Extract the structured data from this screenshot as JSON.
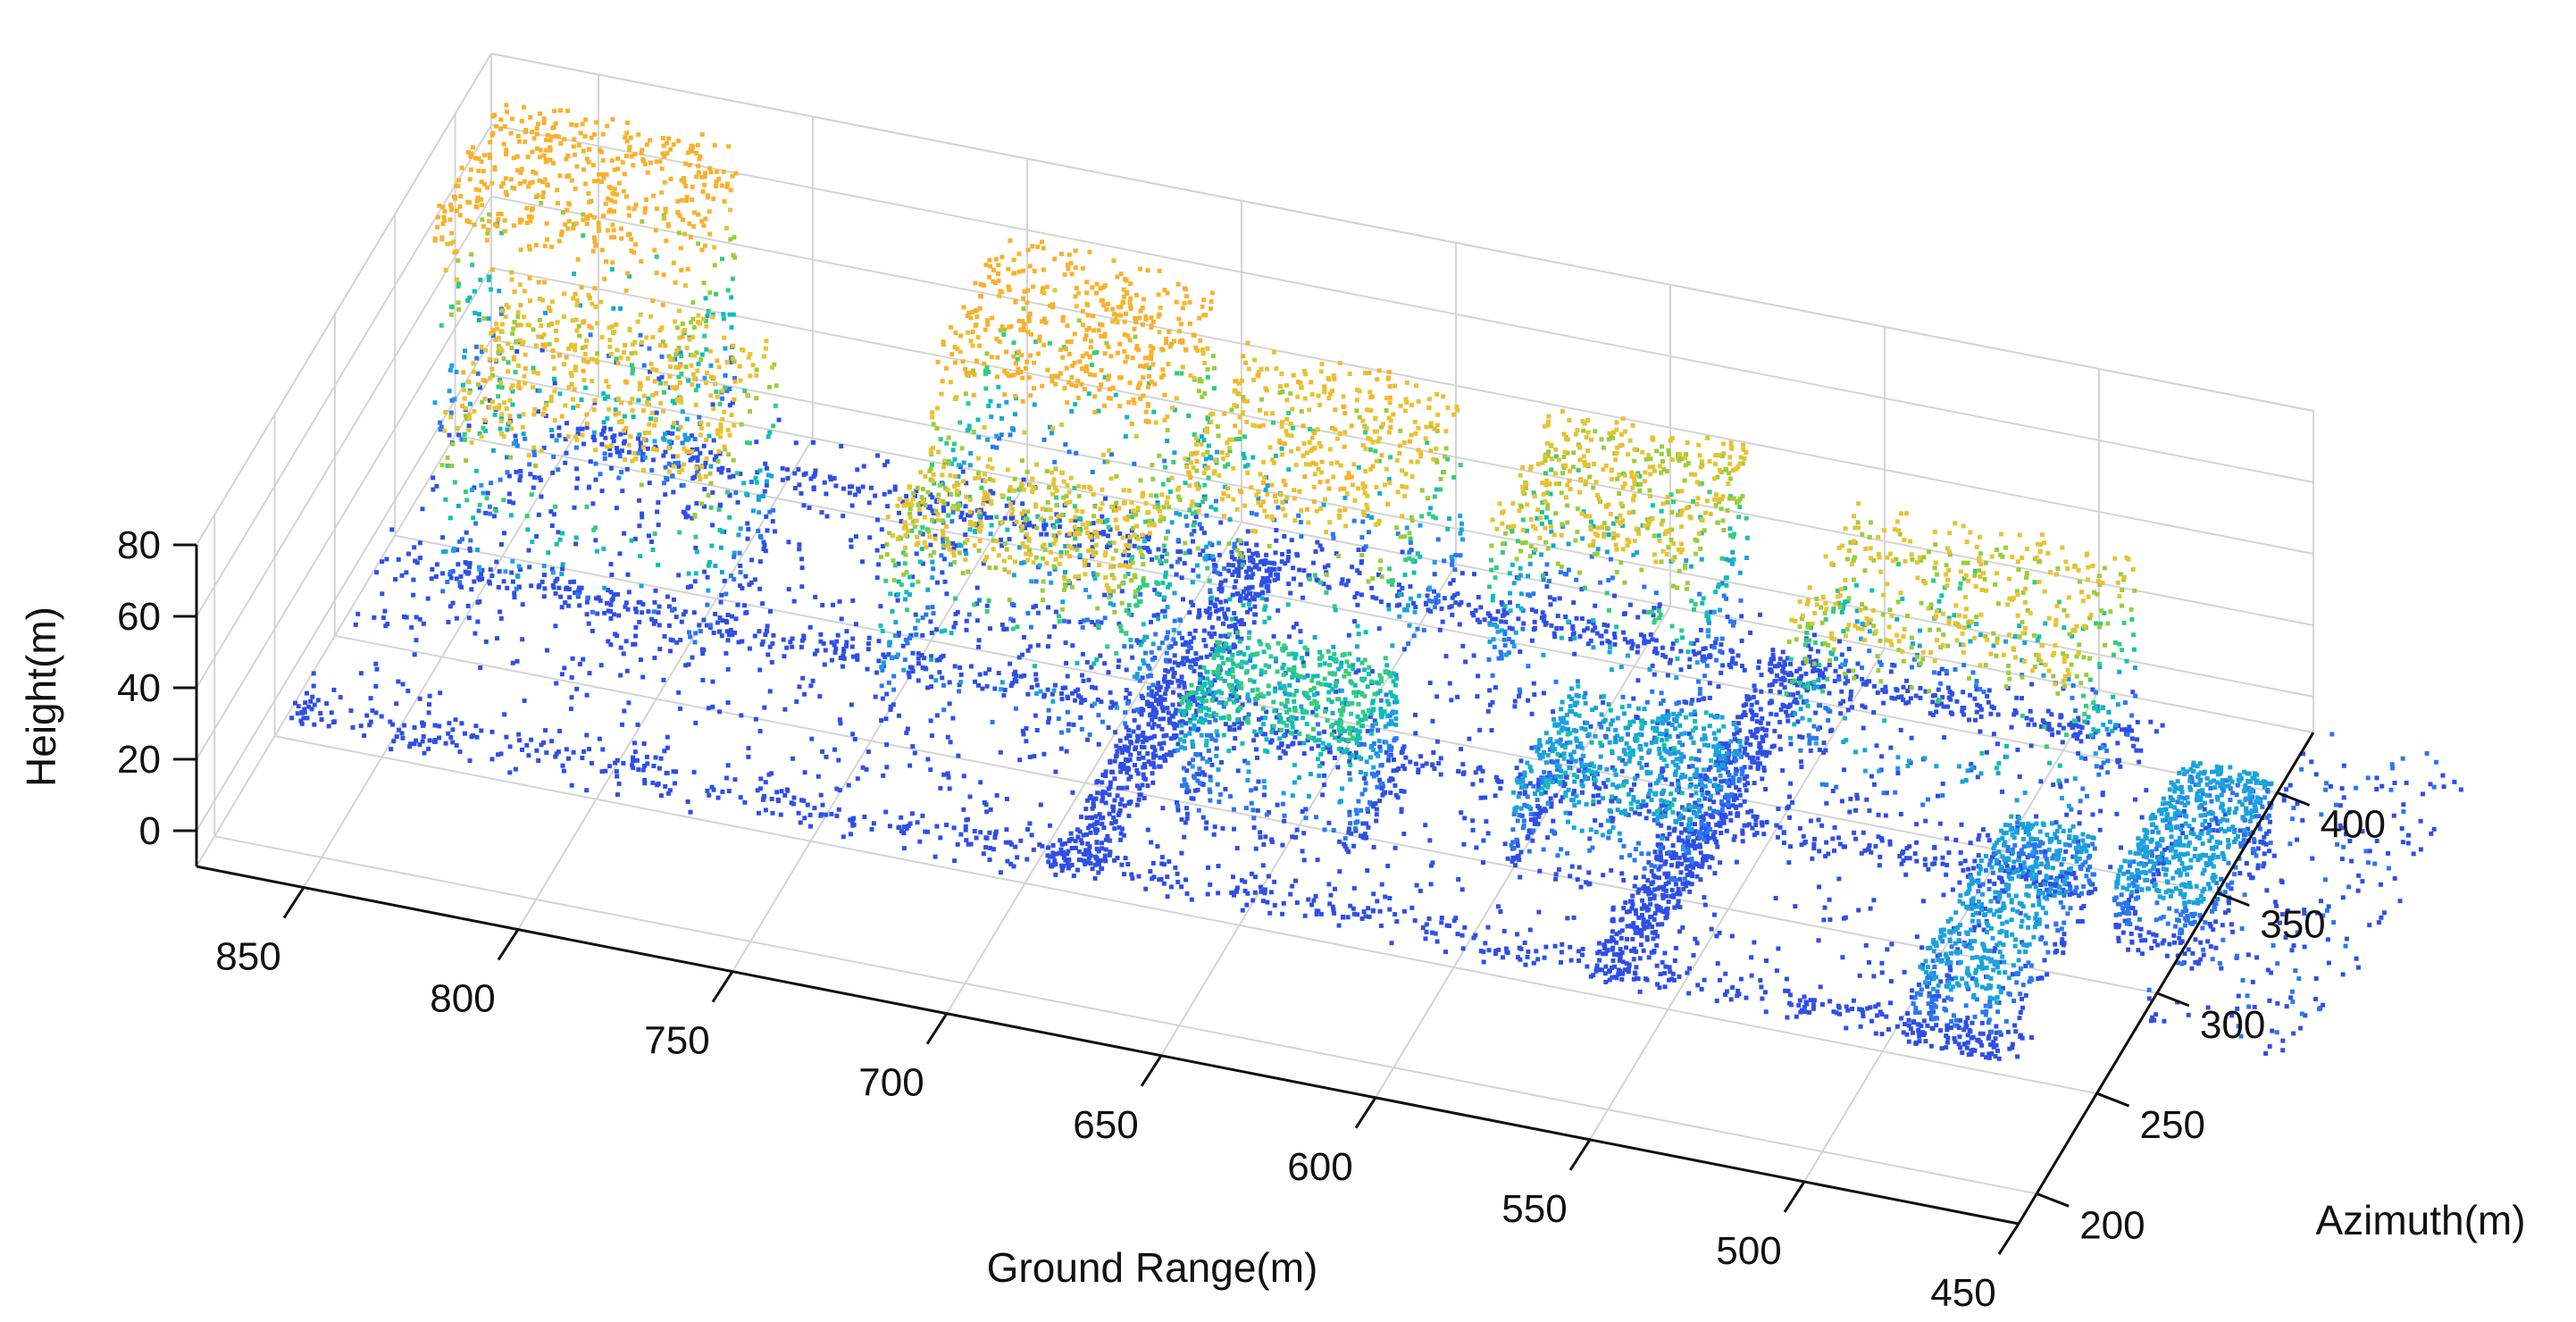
{
  "chart_data": {
    "type": "scatter",
    "subtype": "3d-point-cloud",
    "title": "",
    "xlabel": "Ground Range(m)",
    "ylabel": "Azimuth(m)",
    "zlabel": "Height(m)",
    "xlim": [
      450,
      875
    ],
    "ylim": [
      185,
      430
    ],
    "zlim": [
      -10,
      80
    ],
    "xticks": [
      850,
      800,
      750,
      700,
      650,
      600,
      550,
      500,
      450
    ],
    "yticks": [
      400,
      350,
      300,
      250,
      200
    ],
    "zticks": [
      80,
      60,
      40,
      20,
      0
    ],
    "grid": true,
    "colormap": "parula-like, colored by height",
    "colors": [
      "#3d1f9e",
      "#2f4fe6",
      "#2a78f2",
      "#1aa3dd",
      "#11bfb4",
      "#35cc80",
      "#9ccc3a",
      "#e8c232",
      "#f8b12e"
    ],
    "buildings": [
      {
        "x0": 790,
        "x1": 850,
        "y0": 300,
        "y1": 365,
        "z": 60
      },
      {
        "x0": 815,
        "x1": 870,
        "y0": 365,
        "y1": 420,
        "z": 75
      },
      {
        "x0": 690,
        "x1": 745,
        "y0": 290,
        "y1": 335,
        "z": 55
      },
      {
        "x0": 700,
        "x1": 750,
        "y0": 350,
        "y1": 410,
        "z": 70
      },
      {
        "x0": 630,
        "x1": 670,
        "y0": 270,
        "y1": 310,
        "z": 35
      },
      {
        "x0": 640,
        "x1": 690,
        "y0": 330,
        "y1": 400,
        "z": 60
      },
      {
        "x0": 575,
        "x1": 620,
        "y0": 350,
        "y1": 405,
        "z": 55
      },
      {
        "x0": 555,
        "x1": 595,
        "y0": 280,
        "y1": 330,
        "z": 25
      },
      {
        "x0": 480,
        "x1": 545,
        "y0": 330,
        "y1": 390,
        "z": 55
      },
      {
        "x0": 470,
        "x1": 490,
        "y0": 240,
        "y1": 320,
        "z": 20
      },
      {
        "x0": 440,
        "x1": 460,
        "y0": 300,
        "y1": 360,
        "z": 20
      }
    ],
    "roads": [
      {
        "x0": 465,
        "x1": 870,
        "y0": 240,
        "y1": 252
      },
      {
        "x0": 470,
        "x1": 870,
        "y0": 315,
        "y1": 325
      },
      {
        "x0": 480,
        "x1": 850,
        "y0": 388,
        "y1": 396
      },
      {
        "x0": 555,
        "x1": 567,
        "y0": 240,
        "y1": 400
      },
      {
        "x0": 680,
        "x1": 692,
        "y0": 240,
        "y1": 400
      }
    ]
  }
}
